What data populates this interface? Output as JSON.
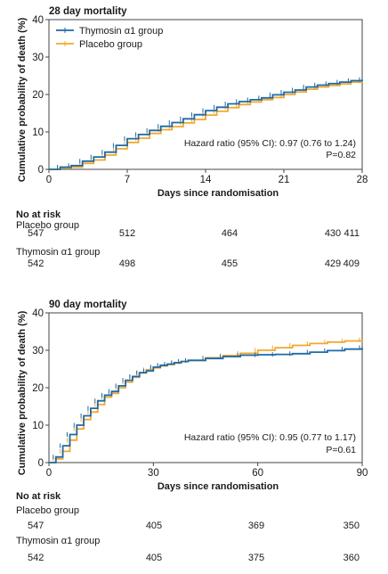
{
  "chart_data": [
    {
      "type": "line",
      "title": "28 day mortality",
      "xlabel": "Days since randomisation",
      "ylabel": "Cumulative probability of death (%)",
      "xlim": [
        0,
        28
      ],
      "ylim": [
        0,
        40
      ],
      "xticks": [
        0,
        7,
        14,
        21,
        28
      ],
      "yticks": [
        0,
        10,
        20,
        30,
        40
      ],
      "grid": false,
      "legend": "top-left",
      "annotation": [
        "Hazard ratio (95% CI): 0.97 (0.76 to 1.24)",
        "P=0.82"
      ],
      "series": [
        {
          "name": "Thymosin α1 group",
          "color": "#1f6aa5",
          "x": [
            0,
            1,
            2,
            3,
            4,
            5,
            6,
            7,
            8,
            9,
            10,
            11,
            12,
            13,
            14,
            15,
            16,
            17,
            18,
            19,
            20,
            21,
            22,
            23,
            24,
            25,
            26,
            27,
            28
          ],
          "y": [
            0,
            0.6,
            1.0,
            2.2,
            3.3,
            4.6,
            6.4,
            8.2,
            9.3,
            10.4,
            11.5,
            12.5,
            13.5,
            14.6,
            15.7,
            16.6,
            17.5,
            18.1,
            18.6,
            19.1,
            19.9,
            20.6,
            21.2,
            22.0,
            22.5,
            22.9,
            23.3,
            23.7,
            24.0
          ]
        },
        {
          "name": "Placebo group",
          "color": "#f0a830",
          "x": [
            0,
            1,
            2,
            3,
            4,
            5,
            6,
            7,
            8,
            9,
            10,
            11,
            12,
            13,
            14,
            15,
            16,
            17,
            18,
            19,
            20,
            21,
            22,
            23,
            24,
            25,
            26,
            27,
            28
          ],
          "y": [
            0,
            0.4,
            0.6,
            1.6,
            2.5,
            3.8,
            5.5,
            7.2,
            8.3,
            9.6,
            10.6,
            11.4,
            12.4,
            13.3,
            14.5,
            15.5,
            16.5,
            17.3,
            18.0,
            18.6,
            19.2,
            20.0,
            20.7,
            21.4,
            22.0,
            22.4,
            22.8,
            23.3,
            23.6
          ]
        }
      ]
    },
    {
      "type": "line",
      "title": "90 day mortality",
      "xlabel": "Days since randomisation",
      "ylabel": "Cumulative probability of death (%)",
      "xlim": [
        0,
        90
      ],
      "ylim": [
        0,
        40
      ],
      "xticks": [
        0,
        30,
        60,
        90
      ],
      "yticks": [
        0,
        10,
        20,
        30,
        40
      ],
      "grid": false,
      "annotation": [
        "Hazard ratio (95% CI): 0.95 (0.77 to 1.17)",
        "P=0.61"
      ],
      "series": [
        {
          "name": "Thymosin α1 group",
          "color": "#1f6aa5",
          "x": [
            0,
            2,
            4,
            6,
            8,
            10,
            12,
            14,
            16,
            18,
            20,
            22,
            24,
            26,
            28,
            30,
            32,
            34,
            36,
            38,
            40,
            45,
            50,
            55,
            60,
            65,
            70,
            75,
            80,
            85,
            90
          ],
          "y": [
            0,
            1.5,
            4.5,
            7.5,
            10.0,
            12.5,
            14.5,
            16.5,
            18.0,
            19.0,
            20.5,
            22.0,
            23.0,
            24.0,
            24.5,
            25.5,
            26.0,
            26.3,
            26.7,
            27.0,
            27.3,
            27.8,
            28.3,
            28.7,
            28.8,
            28.9,
            29.1,
            29.5,
            29.9,
            30.3,
            30.7
          ]
        },
        {
          "name": "Placebo group",
          "color": "#f0a830",
          "x": [
            0,
            2,
            4,
            6,
            8,
            10,
            12,
            14,
            16,
            18,
            20,
            22,
            24,
            26,
            28,
            30,
            32,
            34,
            36,
            38,
            40,
            45,
            50,
            55,
            60,
            65,
            70,
            75,
            80,
            85,
            90
          ],
          "y": [
            0,
            1.0,
            3.0,
            6.0,
            9.0,
            11.5,
            13.5,
            15.5,
            17.5,
            18.5,
            20.0,
            21.5,
            22.8,
            24.0,
            24.8,
            25.3,
            25.8,
            26.2,
            26.6,
            27.0,
            27.3,
            28.0,
            28.6,
            29.2,
            30.0,
            30.7,
            31.3,
            31.8,
            32.2,
            32.5,
            32.8
          ]
        }
      ]
    }
  ],
  "risk_tables": [
    {
      "header": "No at risk",
      "rows": [
        {
          "label": "Placebo group",
          "values": [
            "547",
            "512",
            "464",
            "430",
            "411"
          ]
        },
        {
          "label": "Thymosin α1 group",
          "values": [
            "542",
            "498",
            "455",
            "429",
            "409"
          ]
        }
      ]
    },
    {
      "header": "No at risk",
      "rows": [
        {
          "label": "Placebo group",
          "values": [
            "547",
            "405",
            "369",
            "350"
          ]
        },
        {
          "label": "Thymosin α1 group",
          "values": [
            "542",
            "405",
            "375",
            "360"
          ]
        }
      ]
    }
  ]
}
